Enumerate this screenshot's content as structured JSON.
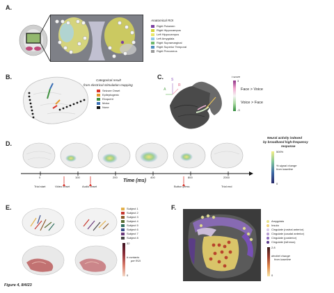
{
  "panels": {
    "A": "A.",
    "B": "B.",
    "C": "C.",
    "D": "D.",
    "E": "E.",
    "F": "F."
  },
  "panelA": {
    "legend_title": "Anatomical ROI",
    "items": [
      {
        "label": "Right Putamen",
        "color": "#7b3fa0"
      },
      {
        "label": "Right Hippocampus",
        "color": "#d4d23a"
      },
      {
        "label": "Left Hippocampus",
        "color": "#e8e66a"
      },
      {
        "label": "Left Amygdala",
        "color": "#8fc9e6"
      },
      {
        "label": "Right Supramarginal",
        "color": "#6db86b"
      },
      {
        "label": "Right Superior Temporal",
        "color": "#4f8fbf"
      },
      {
        "label": "Right Precuneus",
        "color": "#9a9a9a"
      }
    ]
  },
  "panelB": {
    "legend_title_1": "Categorical result",
    "legend_title_2": "from electrical stimulation mapping",
    "items": [
      {
        "label": "Seizure Onset",
        "color": "#d9342b"
      },
      {
        "label": "Epileptogenic",
        "color": "#e39a2d"
      },
      {
        "label": "Eloquent",
        "color": "#3c8f3c"
      },
      {
        "label": "Motor",
        "color": "#3a6fb5"
      },
      {
        "label": "None",
        "color": "#111111"
      }
    ]
  },
  "panelC": {
    "colorbar_title": "t score",
    "colorbar_max": "3",
    "colorbar_min": "-3",
    "face_voice": "Face > Voice",
    "voice_face": "Voice > Face",
    "axis_s": "S",
    "axis_r": "R",
    "axis_a": "A"
  },
  "panelD": {
    "legend_title_1": "Neural activity indexed",
    "legend_title_2": "by broadband high-frequency",
    "legend_title_3": "response",
    "colorbar_max": "500%",
    "colorbar_label_1": "% signal change",
    "colorbar_label_2": "from baseline",
    "colorbar_min": "0",
    "axis_title": "Time (ms)",
    "ticks": [
      "0",
      "100",
      "200",
      "400",
      "800",
      "2000"
    ],
    "events": [
      "Trial start",
      "Video onset",
      "Audio onset",
      "Button press",
      "Trial end"
    ]
  },
  "panelE": {
    "subjects": [
      {
        "label": "Subject 1",
        "color": "#e3b04b"
      },
      {
        "label": "Subject 2",
        "color": "#c7372f"
      },
      {
        "label": "Subject 3",
        "color": "#8a5a2b"
      },
      {
        "label": "Subject 4",
        "color": "#556b2f"
      },
      {
        "label": "Subject 5",
        "color": "#2f6f5f"
      },
      {
        "label": "Subject 6",
        "color": "#3a4f8a"
      },
      {
        "label": "Subject 7",
        "color": "#6a3a7a"
      },
      {
        "label": "Subject 8",
        "color": "#444444"
      }
    ],
    "colorbar_max": "32",
    "colorbar_min": "0",
    "colorbar_label_1": "# contacts",
    "colorbar_label_2": "per ROI"
  },
  "panelF": {
    "items": [
      {
        "label": "Amygdala",
        "color": "#e6e08a"
      },
      {
        "label": "Insula",
        "color": "#f0d27a"
      },
      {
        "label": "Cingulate (rostral anterior)",
        "color": "#d7c6e6"
      },
      {
        "label": "Cingulate (caudal anterior)",
        "color": "#b49ad1"
      },
      {
        "label": "Cingulate (posterior)",
        "color": "#8c6bbb"
      },
      {
        "label": "Cingulate (isthmus)",
        "color": "#5a3a8a"
      }
    ],
    "colorbar_max": "2.8",
    "colorbar_min": "0",
    "colorbar_label_1": "decibel change",
    "colorbar_label_2": "from baseline"
  },
  "caption": "Figure 4, 8/4/23"
}
